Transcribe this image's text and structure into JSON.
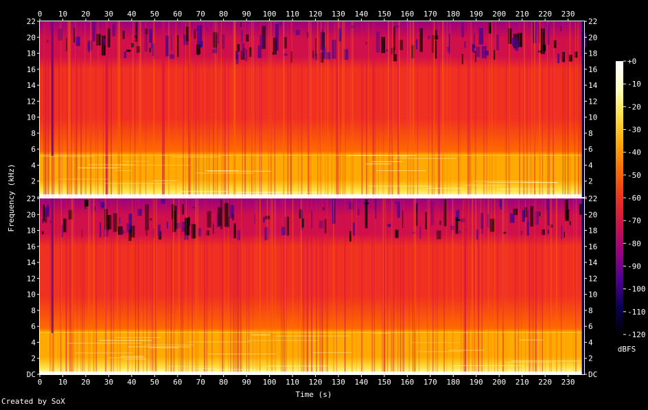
{
  "chart_data": {
    "type": "heatmap",
    "title": "",
    "xlabel": "Time (s)",
    "ylabel": "Frequency (kHz)",
    "xlim": [
      0,
      237
    ],
    "x_ticks": [
      "0",
      "10",
      "20",
      "30",
      "40",
      "50",
      "60",
      "70",
      "80",
      "90",
      "100",
      "110",
      "120",
      "130",
      "140",
      "150",
      "160",
      "170",
      "180",
      "190",
      "200",
      "210",
      "220",
      "230"
    ],
    "channels": [
      {
        "name": "",
        "ylim": [
          0,
          22
        ],
        "y_ticks": [
          "DC",
          "2",
          "4",
          "6",
          "8",
          "10",
          "12",
          "14",
          "16",
          "18",
          "20",
          "22"
        ]
      },
      {
        "name": "",
        "ylim": [
          0,
          22
        ],
        "y_ticks": [
          "DC",
          "2",
          "4",
          "6",
          "8",
          "10",
          "12",
          "14",
          "16",
          "18",
          "20",
          "22"
        ]
      }
    ],
    "colorbar": {
      "label": "dBFS",
      "range": [
        -120,
        0
      ],
      "ticks": [
        "+0",
        "-10",
        "-20",
        "-30",
        "-40",
        "-50",
        "-60",
        "-70",
        "-80",
        "-90",
        "-100",
        "-110",
        "-120"
      ],
      "colors": [
        "#000000",
        "#0a0050",
        "#4a0090",
        "#9a0080",
        "#d0104a",
        "#f03020",
        "#ff6a00",
        "#ffaa00",
        "#ffe040",
        "#ffffc0",
        "#ffffff"
      ]
    },
    "energy_bands_khz": {
      "bright_low_band": [
        0,
        5.3
      ],
      "mid_band": [
        5.3,
        16
      ],
      "sparse_top_band": [
        16,
        22
      ]
    }
  },
  "footer": {
    "credit": "Created by SoX"
  }
}
